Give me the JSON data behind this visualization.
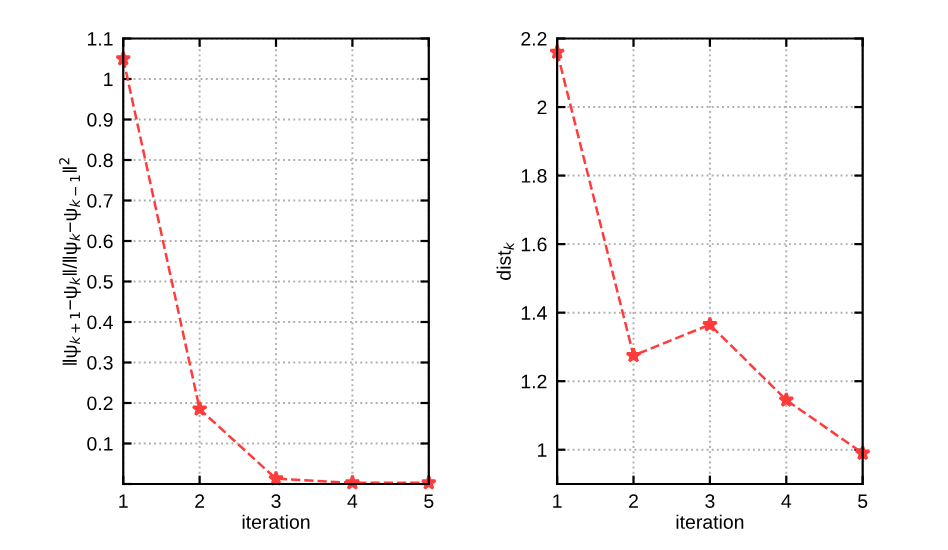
{
  "chart_data": [
    {
      "type": "line",
      "xlabel": "iteration",
      "ylabel": "‖ψ$_{k+1}$−ψ$_{k}$‖/‖ψ$_{k}$−ψ$_{k−1}$‖$^{2}$",
      "x": [
        1,
        2,
        3,
        4,
        5
      ],
      "series": [
        {
          "color": "#ff3b3b",
          "values": [
            1.05,
            0.185,
            0.013,
            0.003,
            0.003
          ]
        }
      ],
      "xlim": [
        1,
        5
      ],
      "xticks": [
        1,
        2,
        3,
        4,
        5
      ],
      "ylim": [
        0,
        1.1
      ],
      "yticks": [
        {
          "value": 0,
          "label": null
        },
        0.1,
        0.2,
        0.3,
        0.4,
        0.5,
        0.6,
        0.7,
        0.8,
        0.9,
        1,
        1.1
      ],
      "grid": true,
      "marker": "star",
      "line_style": "dashed"
    },
    {
      "type": "line",
      "xlabel": "iteration",
      "ylabel": "dist$_{k}$",
      "x": [
        1,
        2,
        3,
        4,
        5
      ],
      "series": [
        {
          "color": "#ff3b3b",
          "values": [
            2.16,
            1.275,
            1.365,
            1.145,
            0.99
          ]
        }
      ],
      "xlim": [
        1,
        5
      ],
      "xticks": [
        1,
        2,
        3,
        4,
        5
      ],
      "ylim": [
        0.9,
        2.2
      ],
      "yticks": [
        1,
        1.2,
        1.4,
        1.6,
        1.8,
        2,
        2.2
      ],
      "grid": true,
      "marker": "star",
      "line_style": "dashed"
    }
  ]
}
